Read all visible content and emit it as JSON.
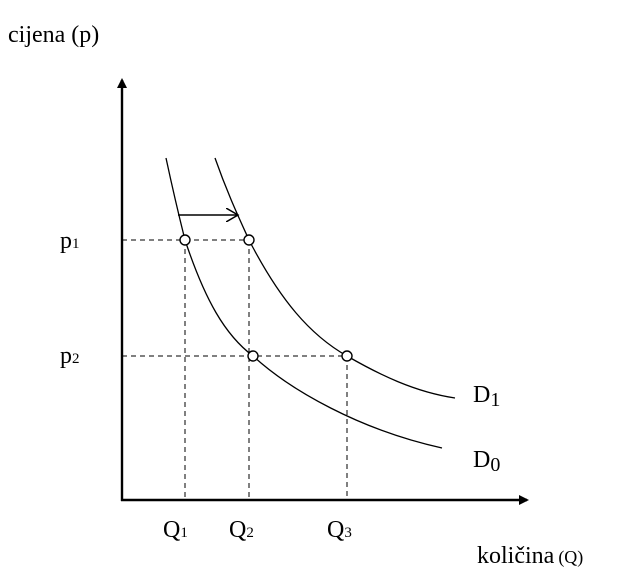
{
  "axes": {
    "y_label": "cijena (p)",
    "x_label": "količina",
    "x_label_unit": "(Q)"
  },
  "price_levels": [
    {
      "text": "p",
      "sub": "1"
    },
    {
      "text": "p",
      "sub": "2"
    }
  ],
  "quantities": [
    {
      "text": "Q",
      "sub": "1"
    },
    {
      "text": "Q",
      "sub": "2"
    },
    {
      "text": "Q",
      "sub": "3"
    }
  ],
  "curves": [
    {
      "text": "D",
      "sub": "1"
    },
    {
      "text": "D",
      "sub": "0"
    }
  ]
}
